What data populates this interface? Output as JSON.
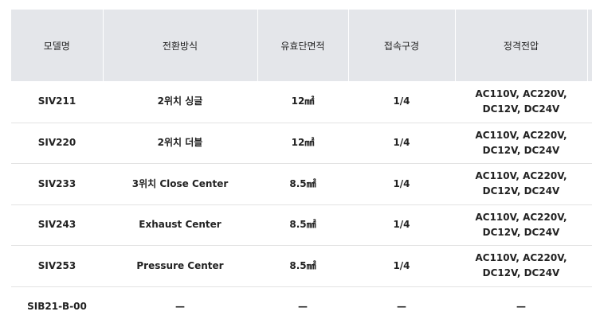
{
  "table": {
    "headers": [
      "모델명",
      "전환방식",
      "유효단면적",
      "접속구경",
      "정격전압"
    ],
    "rows": [
      [
        "SIV211",
        "2위치 싱글",
        "12㎟",
        "1/4",
        "AC110V, AC220V, DC12V, DC24V"
      ],
      [
        "SIV220",
        "2위치 더블",
        "12㎟",
        "1/4",
        "AC110V, AC220V, DC12V, DC24V"
      ],
      [
        "SIV233",
        "3위치 Close Center",
        "8.5㎟",
        "1/4",
        "AC110V, AC220V, DC12V, DC24V"
      ],
      [
        "SIV243",
        "Exhaust Center",
        "8.5㎟",
        "1/4",
        "AC110V, AC220V, DC12V, DC24V"
      ],
      [
        "SIV253",
        "Pressure Center",
        "8.5㎟",
        "1/4",
        "AC110V, AC220V, DC12V, DC24V"
      ],
      [
        "SIB21-B-00",
        "—",
        "—",
        "—",
        "—"
      ]
    ]
  },
  "colors": {
    "header_bg": "#e4e6ea",
    "row_divider": "#e3e3e3",
    "text": "#222222"
  }
}
